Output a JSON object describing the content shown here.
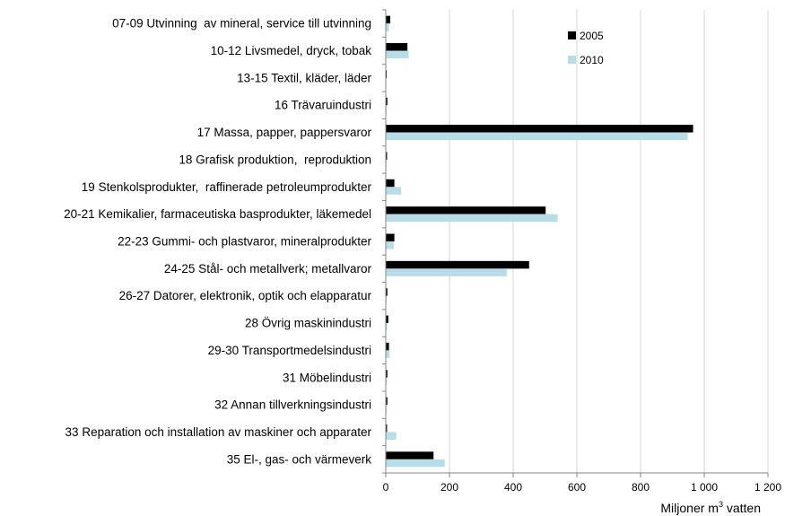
{
  "chart_data": {
    "type": "bar",
    "orientation": "horizontal",
    "categories": [
      "07-09 Utvinning  av mineral, service till utvinning",
      "10-12 Livsmedel, dryck, tobak",
      "13-15 Textil, kläder, läder",
      "16 Trävaruindustri",
      "17 Massa, papper, pappersvaror",
      "18 Grafisk produktion,  reproduktion",
      "19 Stenkolsprodukter,  raffinerade petroleumprodukter",
      "20-21 Kemikalier, farmaceutiska basprodukter, läkemedel",
      "22-23 Gummi- och plastvaror, mineralprodukter",
      "24-25 Stål- och metallverk; metallvaror",
      "26-27 Datorer, elektronik, optik och elapparatur",
      "28 Övrig maskinindustri",
      "29-30 Transportmedelsindustri",
      "31 Möbelindustri",
      "32 Annan tillverkningsindustri",
      "33 Reparation och installation av maskiner och apparater",
      "35 El-, gas- och värmeverk"
    ],
    "series": [
      {
        "name": "2005",
        "color": "#000000",
        "values": [
          14,
          68,
          3,
          5,
          965,
          4,
          27,
          502,
          27,
          450,
          5,
          8,
          10,
          5,
          5,
          4,
          150
        ]
      },
      {
        "name": "2010",
        "color": "#b7dde8",
        "values": [
          10,
          72,
          2,
          3,
          948,
          3,
          48,
          540,
          25,
          380,
          3,
          4,
          12,
          3,
          3,
          33,
          185
        ]
      }
    ],
    "xlabel_prefix": "Miljoner m",
    "xlabel_sup": "3",
    "xlabel_suffix": " vatten",
    "xlim": [
      0,
      1200
    ],
    "ticks": [
      {
        "value": 0,
        "label": "0"
      },
      {
        "value": 200,
        "label": "200"
      },
      {
        "value": 400,
        "label": "400"
      },
      {
        "value": 600,
        "label": "600"
      },
      {
        "value": 800,
        "label": "800"
      },
      {
        "value": 1000,
        "label": "1 000"
      },
      {
        "value": 1200,
        "label": "1 200"
      }
    ],
    "grid": "vertical",
    "legend_position": "top-right"
  }
}
